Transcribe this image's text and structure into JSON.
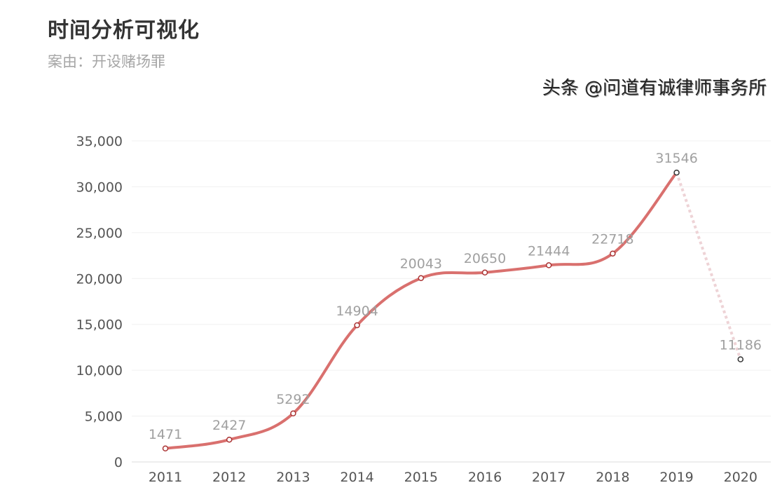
{
  "header": {
    "title": "时间分析可视化",
    "subtitle": "案由：开设赌场罪"
  },
  "watermark": "头条 @问道有诚律师事务所",
  "chart_data": {
    "type": "line",
    "title": "时间分析可视化",
    "subtitle": "案由：开设赌场罪",
    "categories": [
      "2011",
      "2012",
      "2013",
      "2014",
      "2015",
      "2016",
      "2017",
      "2018",
      "2019",
      "2020"
    ],
    "values": [
      1471,
      2427,
      5292,
      14904,
      20043,
      20650,
      21444,
      22718,
      31546,
      11186
    ],
    "data_labels": [
      "1471",
      "2427",
      "5292",
      "14904",
      "20043",
      "20650",
      "21444",
      "22718",
      "31546",
      "11186"
    ],
    "last_segment_style": "dotted",
    "ylim": [
      0,
      35000
    ],
    "yticks": [
      0,
      5000,
      10000,
      15000,
      20000,
      25000,
      30000,
      35000
    ],
    "ytick_labels": [
      "0",
      "5,000",
      "10,000",
      "15,000",
      "20,000",
      "25,000",
      "30,000",
      "35,000"
    ],
    "smooth": true,
    "grid": true,
    "line_color": "#d9706e",
    "dotted_color": "#eed3d6",
    "label_color": "#a0a0a0"
  }
}
